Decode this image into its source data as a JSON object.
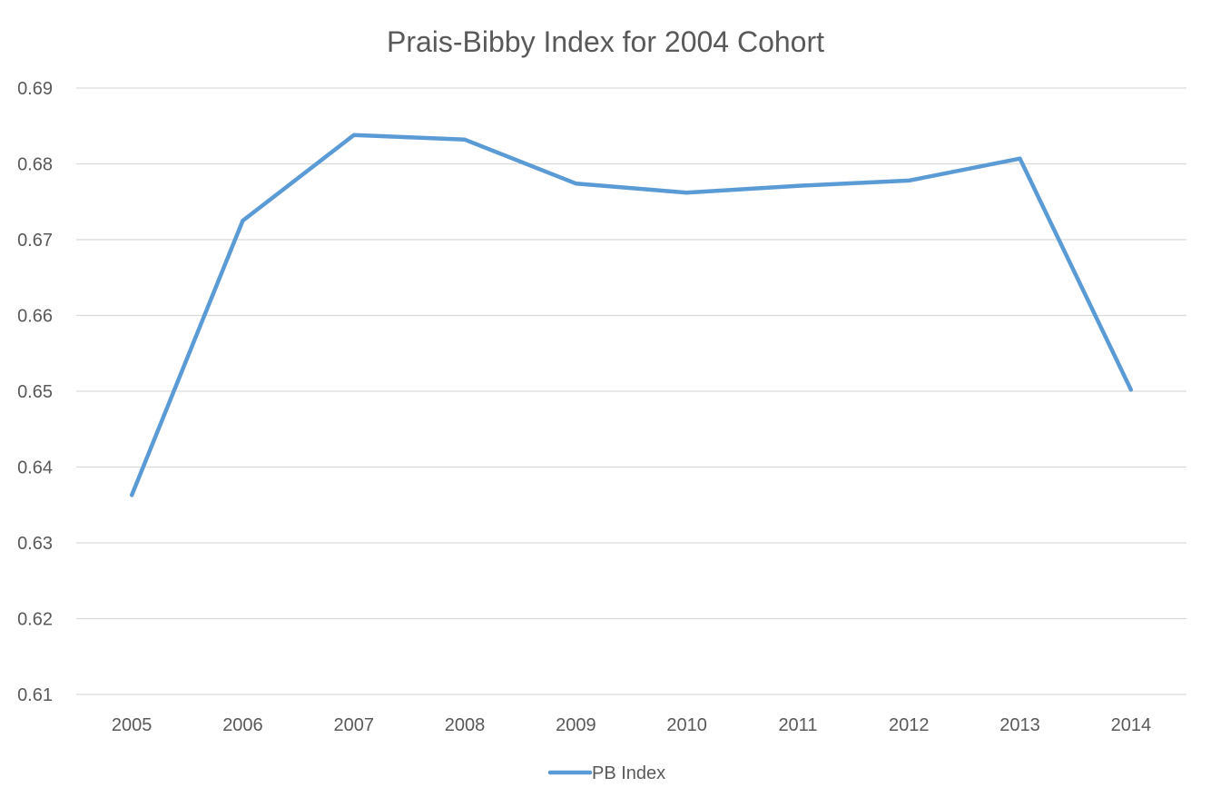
{
  "chart_data": {
    "type": "line",
    "title": "Prais-Bibby Index for 2004 Cohort",
    "xlabel": "",
    "ylabel": "",
    "categories": [
      "2005",
      "2006",
      "2007",
      "2008",
      "2009",
      "2010",
      "2011",
      "2012",
      "2013",
      "2014"
    ],
    "series": [
      {
        "name": "PB Index",
        "color": "#5b9bd5",
        "values": [
          0.6363,
          0.6725,
          0.6838,
          0.6832,
          0.6774,
          0.6762,
          0.6771,
          0.6778,
          0.6807,
          0.6502
        ]
      }
    ],
    "ylim": [
      0.61,
      0.69
    ],
    "yticks": [
      "0.61",
      "0.62",
      "0.63",
      "0.64",
      "0.65",
      "0.66",
      "0.67",
      "0.68",
      "0.69"
    ],
    "grid": true,
    "legend_position": "bottom"
  }
}
